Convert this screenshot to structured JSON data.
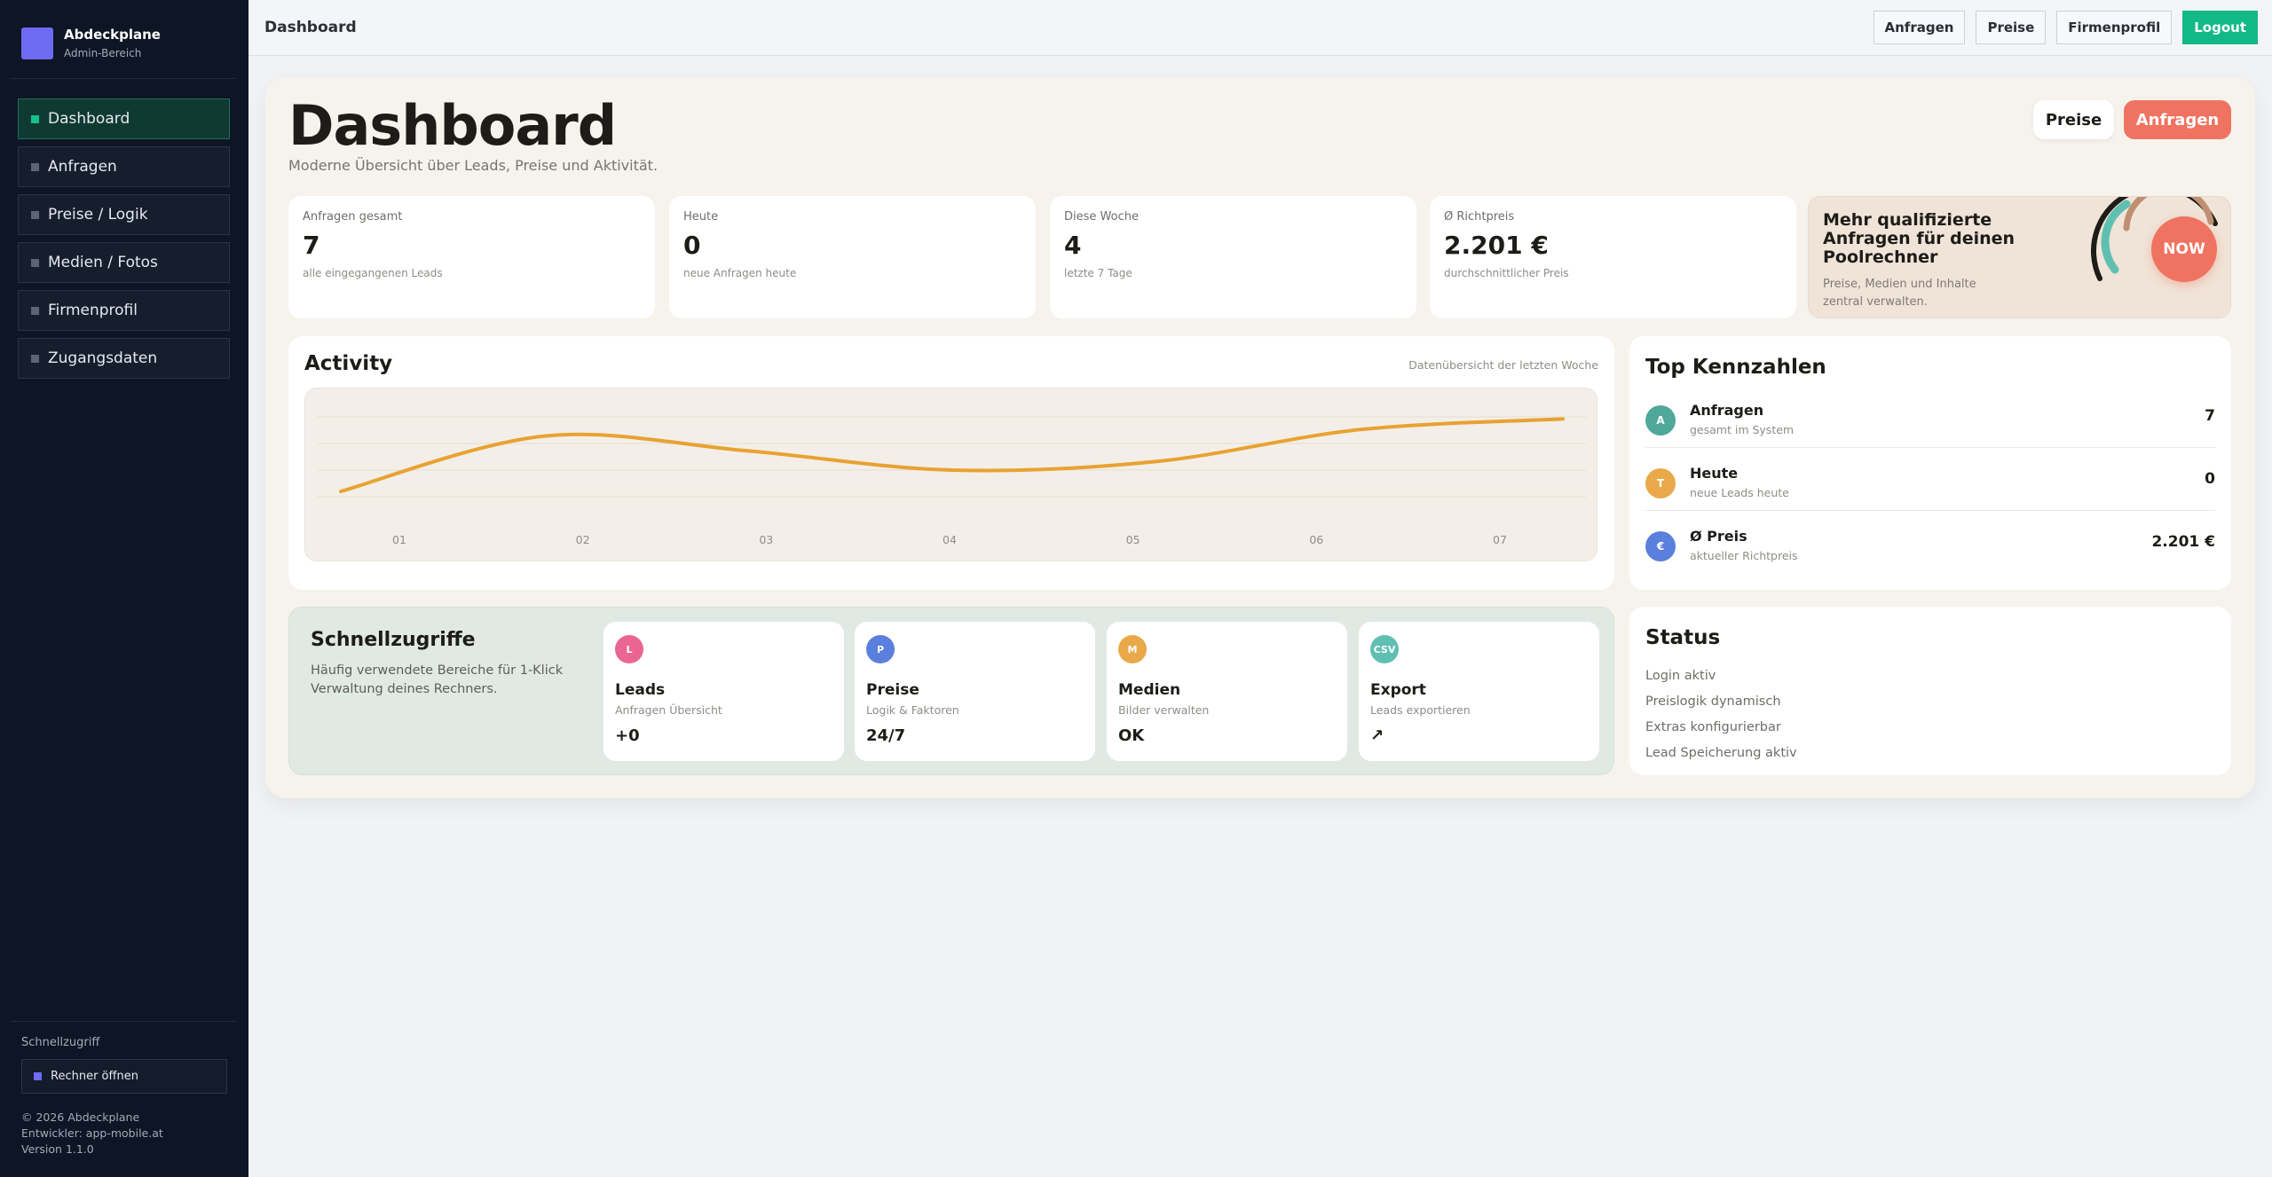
{
  "sidebar": {
    "brand": "Abdeckplane",
    "brand_sub": "Admin-Bereich",
    "items": [
      {
        "label": "Dashboard",
        "active": true
      },
      {
        "label": "Anfragen"
      },
      {
        "label": "Preise / Logik"
      },
      {
        "label": "Medien / Fotos"
      },
      {
        "label": "Firmenprofil"
      },
      {
        "label": "Zugangsdaten"
      }
    ],
    "quick_label": "Schnellzugriff",
    "quick_button": "Rechner öffnen",
    "copyright": "© 2026 Abdeckplane",
    "developer": "Entwickler: app-mobile.at",
    "version": "Version 1.1.0"
  },
  "topbar": {
    "title": "Dashboard",
    "buttons": [
      "Anfragen",
      "Preise",
      "Firmenprofil",
      "Logout"
    ]
  },
  "header": {
    "title": "Dashboard",
    "subtitle": "Moderne Übersicht über Leads, Preise und Aktivität.",
    "btn_preise": "Preise",
    "btn_anfragen": "Anfragen"
  },
  "stats": [
    {
      "label": "Anfragen gesamt",
      "value": "7",
      "desc": "alle eingegangenen Leads"
    },
    {
      "label": "Heute",
      "value": "0",
      "desc": "neue Anfragen heute"
    },
    {
      "label": "Diese Woche",
      "value": "4",
      "desc": "letzte 7 Tage"
    },
    {
      "label": "Ø Richtpreis",
      "value": "2.201 €",
      "desc": "durchschnittlicher Preis"
    }
  ],
  "promo": {
    "title": "Mehr qualifizierte Anfragen für deinen Poolrechner",
    "text": "Preise, Medien und Inhalte zentral verwalten.",
    "badge": "NOW"
  },
  "activity": {
    "title": "Activity",
    "subtitle": "Datenübersicht der letzten Woche"
  },
  "chart_data": {
    "type": "line",
    "x": [
      "01",
      "02",
      "03",
      "04",
      "05",
      "06",
      "07"
    ],
    "series": [
      {
        "values": [
          1.0,
          2.3,
          1.95,
          1.5,
          1.7,
          2.45,
          2.7
        ]
      }
    ],
    "color": "#e8a232",
    "grid": true
  },
  "top_kennzahlen": {
    "title": "Top Kennzahlen",
    "rows": [
      {
        "badge": "A",
        "name": "Anfragen",
        "sub": "gesamt im System",
        "value": "7",
        "color": "#4fa89a"
      },
      {
        "badge": "T",
        "name": "Heute",
        "sub": "neue Leads heute",
        "value": "0",
        "color": "#e9a94a"
      },
      {
        "badge": "€",
        "name": "Ø Preis",
        "sub": "aktueller Richtpreis",
        "value": "2.201 €",
        "color": "#5b7fdc"
      }
    ]
  },
  "quick": {
    "title": "Schnellzugriffe",
    "desc": "Häufig verwendete Bereiche für 1-Klick Verwaltung deines Rechners.",
    "cards": [
      {
        "badge": "L",
        "name": "Leads",
        "sub": "Anfragen Übersicht",
        "value": "+0",
        "color": "#ea6592"
      },
      {
        "badge": "P",
        "name": "Preise",
        "sub": "Logik & Faktoren",
        "value": "24/7",
        "color": "#5b7fdc"
      },
      {
        "badge": "M",
        "name": "Medien",
        "sub": "Bilder verwalten",
        "value": "OK",
        "color": "#e9a94a"
      },
      {
        "badge": "CSV",
        "name": "Export",
        "sub": "Leads exportieren",
        "value": "↗",
        "color": "#5fc0b2"
      }
    ]
  },
  "status": {
    "title": "Status",
    "items": [
      "Login aktiv",
      "Preislogik dynamisch",
      "Extras konfigurierbar",
      "Lead Speicherung aktiv"
    ]
  }
}
